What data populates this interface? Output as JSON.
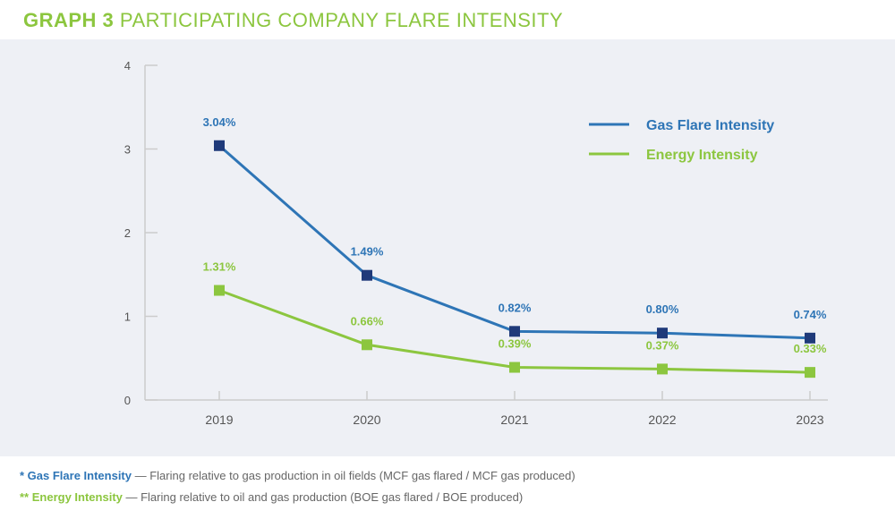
{
  "colors": {
    "gas": "#2e75b6",
    "gas_marker": "#1f3a7a",
    "energy": "#8cc63f",
    "axis": "#cccccc",
    "tick_text": "#555555",
    "title": "#8cc63f"
  },
  "title": {
    "bold": "GRAPH 3",
    "light": " PARTICIPATING COMPANY FLARE INTENSITY"
  },
  "chart_data": {
    "type": "line",
    "title": "GRAPH 3 PARTICIPATING COMPANY FLARE INTENSITY",
    "xlabel": "",
    "ylabel": "",
    "categories": [
      "2019",
      "2020",
      "2021",
      "2022",
      "2023"
    ],
    "ylim": [
      0,
      4
    ],
    "yticks": [
      0,
      1,
      2,
      3,
      4
    ],
    "grid": false,
    "legend_position": "top-right",
    "series": [
      {
        "name": "Gas Flare Intensity",
        "color": "#2e75b6",
        "values": [
          3.04,
          1.49,
          0.82,
          0.8,
          0.74
        ],
        "labels": [
          "3.04%",
          "1.49%",
          "0.82%",
          "0.80%",
          "0.74%"
        ]
      },
      {
        "name": "Energy Intensity",
        "color": "#8cc63f",
        "values": [
          1.31,
          0.66,
          0.39,
          0.37,
          0.33
        ],
        "labels": [
          "1.31%",
          "0.66%",
          "0.39%",
          "0.37%",
          "0.33%"
        ]
      }
    ]
  },
  "footnotes": [
    {
      "marker": "* ",
      "key": "Gas Flare Intensity",
      "text": " — Flaring relative to gas production in oil fields (MCF gas flared / MCF gas produced)"
    },
    {
      "marker": "** ",
      "key": "Energy Intensity",
      "text": " — Flaring relative to oil and gas production (BOE gas flared / BOE produced)"
    }
  ]
}
